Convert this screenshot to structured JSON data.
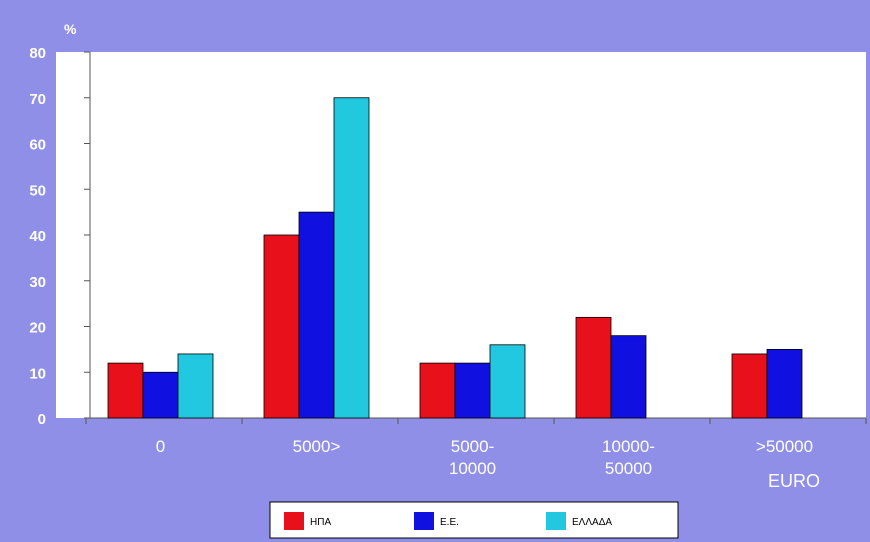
{
  "chart_data": {
    "type": "bar",
    "ylabel": "%",
    "xlabel": "EURO",
    "categories": [
      [
        "0"
      ],
      [
        "5000>"
      ],
      [
        "5000-",
        "10000"
      ],
      [
        "10000-",
        "50000"
      ],
      [
        ">50000"
      ]
    ],
    "series": [
      {
        "name": "ΗΠΑ",
        "color": "#e8101a",
        "values": [
          12,
          40,
          12,
          22,
          14
        ]
      },
      {
        "name": "Ε.Ε.",
        "color": "#1010e0",
        "values": [
          10,
          45,
          12,
          18,
          15
        ]
      },
      {
        "name": "ΕΛΛΑΔΑ",
        "color": "#22c8e0",
        "values": [
          14,
          70,
          16,
          0,
          0
        ]
      }
    ],
    "ylim": [
      0,
      80
    ],
    "yticks": [
      0,
      10,
      20,
      30,
      40,
      50,
      60,
      70,
      80
    ],
    "grid": false,
    "legend_position": "bottom",
    "colors": {
      "background": "#8f8fe8",
      "plot_area": "#ffffff",
      "text": "#ffffff"
    }
  }
}
